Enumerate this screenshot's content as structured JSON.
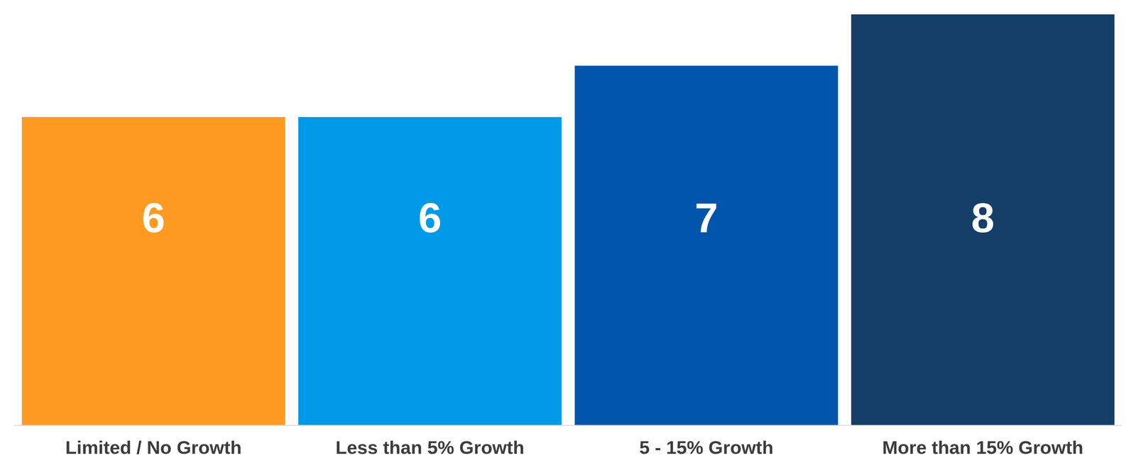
{
  "chart_data": {
    "type": "bar",
    "categories": [
      "Limited / No Growth",
      "Less than 5% Growth",
      "5 - 15% Growth",
      "More than 15% Growth"
    ],
    "values": [
      6,
      6,
      7,
      8
    ],
    "colors": [
      "#ff9a22",
      "#0099e8",
      "#0055aa",
      "#153f68"
    ],
    "ylim": [
      0,
      8
    ],
    "data_labels": true,
    "tick_labels": "x",
    "grid": false
  }
}
